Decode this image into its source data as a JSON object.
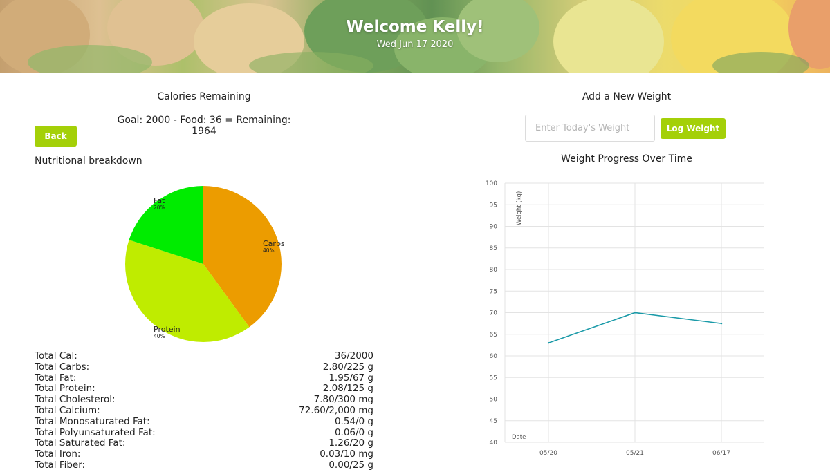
{
  "header": {
    "welcome": "Welcome Kelly!",
    "date": "Wed Jun 17 2020"
  },
  "calories": {
    "title": "Calories Remaining",
    "summary": "Goal: 2000 - Food: 36 = Remaining: 1964",
    "back_label": "Back"
  },
  "nutrition": {
    "title": "Nutritional breakdown",
    "rows": [
      {
        "label": "Total Cal:",
        "value": "36/2000"
      },
      {
        "label": "Total Carbs:",
        "value": "2.80/225 g"
      },
      {
        "label": "Total Fat:",
        "value": "1.95/67 g"
      },
      {
        "label": "Total Protein:",
        "value": "2.08/125 g"
      },
      {
        "label": "Total Cholesterol:",
        "value": "7.80/300 mg"
      },
      {
        "label": "Total Calcium:",
        "value": "72.60/2,000 mg"
      },
      {
        "label": "Total Monosaturated Fat:",
        "value": "0.54/0 g"
      },
      {
        "label": "Total Polyunsaturated Fat:",
        "value": "0.06/0 g"
      },
      {
        "label": "Total Saturated Fat:",
        "value": "1.26/20 g"
      },
      {
        "label": "Total Iron:",
        "value": "0.03/10 mg"
      },
      {
        "label": "Total Fiber:",
        "value": "0.00/25 g"
      }
    ]
  },
  "weight": {
    "title": "Add a New Weight",
    "input_placeholder": "Enter Today's Weight",
    "log_label": "Log Weight",
    "chart_title": "Weight Progress Over Time"
  },
  "colors": {
    "accent_green": "#a4d008",
    "carbs": "#ec9c00",
    "protein": "#bfec00",
    "fat": "#00ec00",
    "line": "#1a9aa8"
  },
  "chart_data": [
    {
      "type": "pie",
      "categories": [
        "Carbs",
        "Protein",
        "Fat"
      ],
      "values": [
        40,
        40,
        20
      ],
      "labels": [
        "40%",
        "40%",
        "20%"
      ]
    },
    {
      "type": "line",
      "title": "Weight Progress Over Time",
      "xlabel": "Date",
      "ylabel": "Weight (kg)",
      "x": [
        "05/20",
        "05/21",
        "06/17"
      ],
      "series": [
        {
          "values": [
            63,
            70,
            67.5
          ]
        }
      ],
      "ylim": [
        40,
        100
      ],
      "yticks": [
        100,
        95,
        90,
        85,
        80,
        75,
        70,
        65,
        60,
        55,
        50,
        45,
        40
      ],
      "grid": true
    }
  ]
}
